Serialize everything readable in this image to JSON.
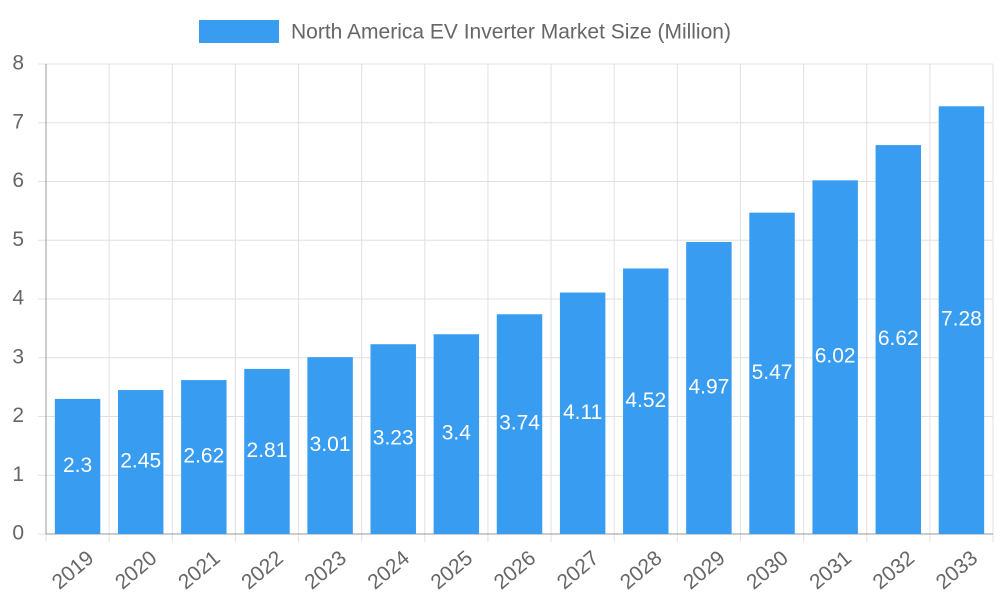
{
  "chart_data": {
    "type": "bar",
    "categories": [
      "2019",
      "2020",
      "2021",
      "2022",
      "2023",
      "2024",
      "2025",
      "2026",
      "2027",
      "2028",
      "2029",
      "2030",
      "2031",
      "2032",
      "2033"
    ],
    "series": [
      {
        "name": "North America EV Inverter Market Size (Million)",
        "color": "#389cf1",
        "values": [
          2.3,
          2.45,
          2.62,
          2.81,
          3.01,
          3.23,
          3.4,
          3.74,
          4.11,
          4.52,
          4.97,
          5.47,
          6.02,
          6.62,
          7.28
        ]
      }
    ],
    "ylim": [
      0,
      8
    ],
    "yticks": [
      0,
      1,
      2,
      3,
      4,
      5,
      6,
      7,
      8
    ],
    "grid": true,
    "legend": "top"
  }
}
